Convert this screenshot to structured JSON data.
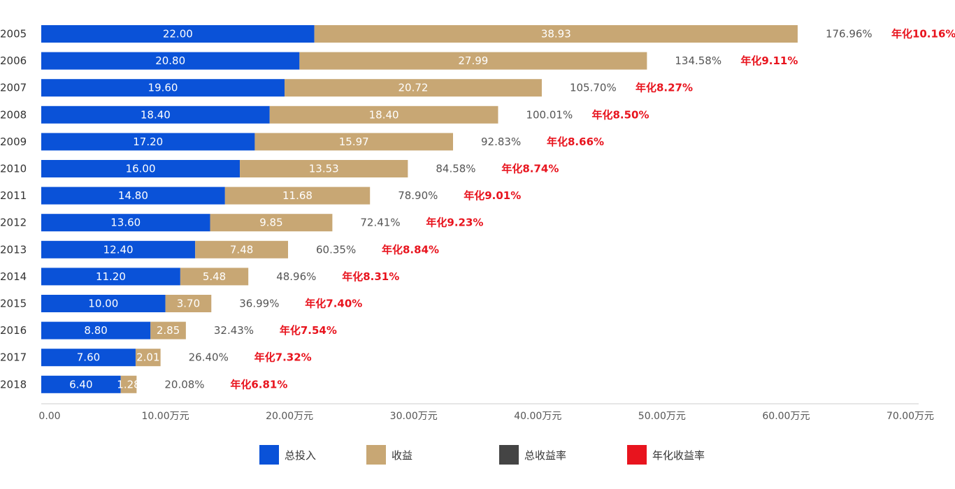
{
  "chart_data": {
    "type": "bar",
    "orientation": "horizontal",
    "stacked": true,
    "categories": [
      "2005",
      "2006",
      "2007",
      "2008",
      "2009",
      "2010",
      "2011",
      "2012",
      "2013",
      "2014",
      "2015",
      "2016",
      "2017",
      "2018"
    ],
    "series": [
      {
        "name": "总投入",
        "color": "#0A52D8",
        "values": [
          22.0,
          20.8,
          19.6,
          18.4,
          17.2,
          16.0,
          14.8,
          13.6,
          12.4,
          11.2,
          10.0,
          8.8,
          7.6,
          6.4
        ],
        "labels": [
          "22.00",
          "20.80",
          "19.60",
          "18.40",
          "17.20",
          "16.00",
          "14.80",
          "13.60",
          "12.40",
          "11.20",
          "10.00",
          "8.80",
          "7.60",
          "6.40"
        ]
      },
      {
        "name": "收益",
        "color": "#C8A774",
        "values": [
          38.93,
          27.99,
          20.72,
          18.4,
          15.97,
          13.53,
          11.68,
          9.85,
          7.48,
          5.48,
          3.7,
          2.85,
          2.01,
          1.28
        ],
        "labels": [
          "38.93",
          "27.99",
          "20.72",
          "18.40",
          "15.97",
          "13.53",
          "11.68",
          "9.85",
          "7.48",
          "5.48",
          "3.70",
          "2.85",
          "2.01",
          "1.28"
        ]
      }
    ],
    "annotations": [
      {
        "name": "总收益率",
        "color": "#444444",
        "labels": [
          "176.96%",
          "134.58%",
          "105.70%",
          "100.01%",
          "92.83%",
          "84.58%",
          "78.90%",
          "72.41%",
          "60.35%",
          "48.96%",
          "36.99%",
          "32.43%",
          "26.40%",
          "20.08%"
        ]
      },
      {
        "name": "年化收益率",
        "color": "#E8141E",
        "labels": [
          "年化10.16%",
          "年化9.11%",
          "年化8.27%",
          "年化8.50%",
          "年化8.66%",
          "年化8.74%",
          "年化9.01%",
          "年化9.23%",
          "年化8.84%",
          "年化8.31%",
          "年化7.40%",
          "年化7.54%",
          "年化7.32%",
          "年化6.81%"
        ]
      }
    ],
    "x_axis": {
      "range": [
        0,
        70
      ],
      "ticks": [
        0,
        10,
        20,
        30,
        40,
        50,
        60,
        70
      ],
      "tick_labels": [
        "0.00",
        "10.00万元",
        "20.00万元",
        "30.00万元",
        "40.00万元",
        "50.00万元",
        "60.00万元",
        "70.00万元"
      ]
    },
    "grid": false,
    "legend_position": "bottom-center"
  },
  "legend": [
    {
      "name": "总投入",
      "color": "#0A52D8"
    },
    {
      "name": "收益",
      "color": "#C8A774"
    },
    {
      "name": "总收益率",
      "color": "#444444"
    },
    {
      "name": "年化收益率",
      "color": "#E8141E"
    }
  ]
}
